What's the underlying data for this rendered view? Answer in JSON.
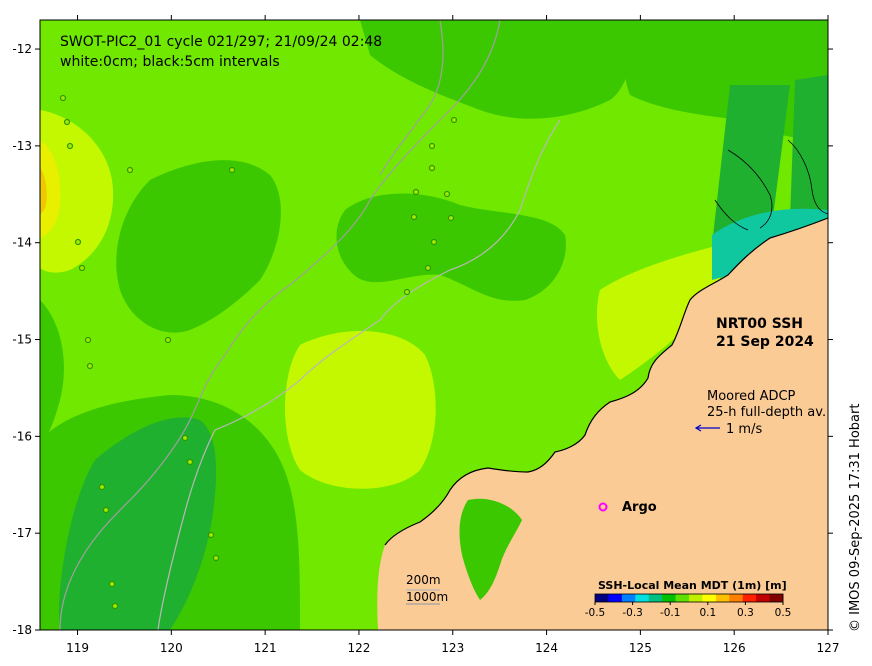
{
  "title": {
    "line1": "SWOT-PIC2_01 cycle 021/297; 21/09/24 02:48",
    "line2": "white:0cm; black:5cm intervals"
  },
  "product": {
    "line1": "NRT00 SSH",
    "line2": "21 Sep 2024"
  },
  "adcp_legend": {
    "line1": "Moored ADCP",
    "line2": "25-h full-depth av.",
    "scale_label": "1 m/s",
    "arrow_color": "#0000cc"
  },
  "argo_legend": {
    "label": "Argo",
    "marker_color": "#ff00ff"
  },
  "isobath_legend": {
    "line1": "200m",
    "line2": "1000m",
    "line_color": "#a8a8a8"
  },
  "colorbar": {
    "title": "SSH-Local Mean MDT (1m) [m]",
    "tick_labels": [
      "-0.5",
      "-0.3",
      "-0.1",
      "0.1",
      "0.3",
      "0.5"
    ],
    "colors": [
      "#000080",
      "#0000ff",
      "#0080ff",
      "#00e0e0",
      "#00c080",
      "#00c000",
      "#60e000",
      "#c0f000",
      "#ffff00",
      "#ffc000",
      "#ff8000",
      "#ff2000",
      "#c00000",
      "#800000"
    ]
  },
  "axes": {
    "x_ticks": [
      "119",
      "120",
      "121",
      "122",
      "123",
      "124",
      "125",
      "126",
      "127"
    ],
    "y_ticks": [
      "-12",
      "-13",
      "-14",
      "-15",
      "-16",
      "-17",
      "-18"
    ],
    "x_range": [
      118.6,
      127
    ],
    "y_range": [
      -18,
      -11.7
    ]
  },
  "credit": "© IMOS 09-Sep-2025 17:31 Hobart",
  "colors": {
    "land": "#fbcb96",
    "ocean_base": "#70e800",
    "ocean_dark": "#3cc800",
    "ocean_darker": "#20b030",
    "ocean_light": "#c4f800",
    "ocean_yellow": "#e8f000",
    "ocean_teal": "#10c8a0"
  }
}
